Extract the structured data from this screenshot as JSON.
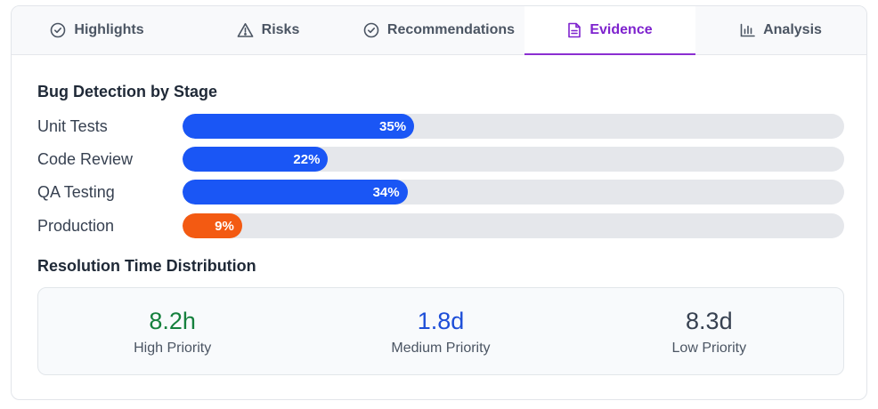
{
  "tabs": [
    {
      "label": "Highlights",
      "icon": "check-circle-icon"
    },
    {
      "label": "Risks",
      "icon": "warning-triangle-icon"
    },
    {
      "label": "Recommendations",
      "icon": "check-circle-icon"
    },
    {
      "label": "Evidence",
      "icon": "document-icon",
      "active": true
    },
    {
      "label": "Analysis",
      "icon": "bar-chart-icon"
    }
  ],
  "bug_detection": {
    "title": "Bug Detection by Stage",
    "stages": [
      {
        "label": "Unit Tests",
        "value": 35,
        "value_label": "35%",
        "color": "#1a56f5"
      },
      {
        "label": "Code Review",
        "value": 22,
        "value_label": "22%",
        "color": "#1a56f5"
      },
      {
        "label": "QA Testing",
        "value": 34,
        "value_label": "34%",
        "color": "#1a56f5"
      },
      {
        "label": "Production",
        "value": 9,
        "value_label": "9%",
        "color": "#f35a12"
      }
    ]
  },
  "resolution": {
    "title": "Resolution Time Distribution",
    "stats": [
      {
        "value": "8.2h",
        "label": "High Priority",
        "color": "#15803d"
      },
      {
        "value": "1.8d",
        "label": "Medium Priority",
        "color": "#1d4ed8"
      },
      {
        "value": "8.3d",
        "label": "Low Priority",
        "color": "#374151"
      }
    ]
  },
  "colors": {
    "active_tab": "#7e22ce",
    "track": "#e5e7eb"
  }
}
